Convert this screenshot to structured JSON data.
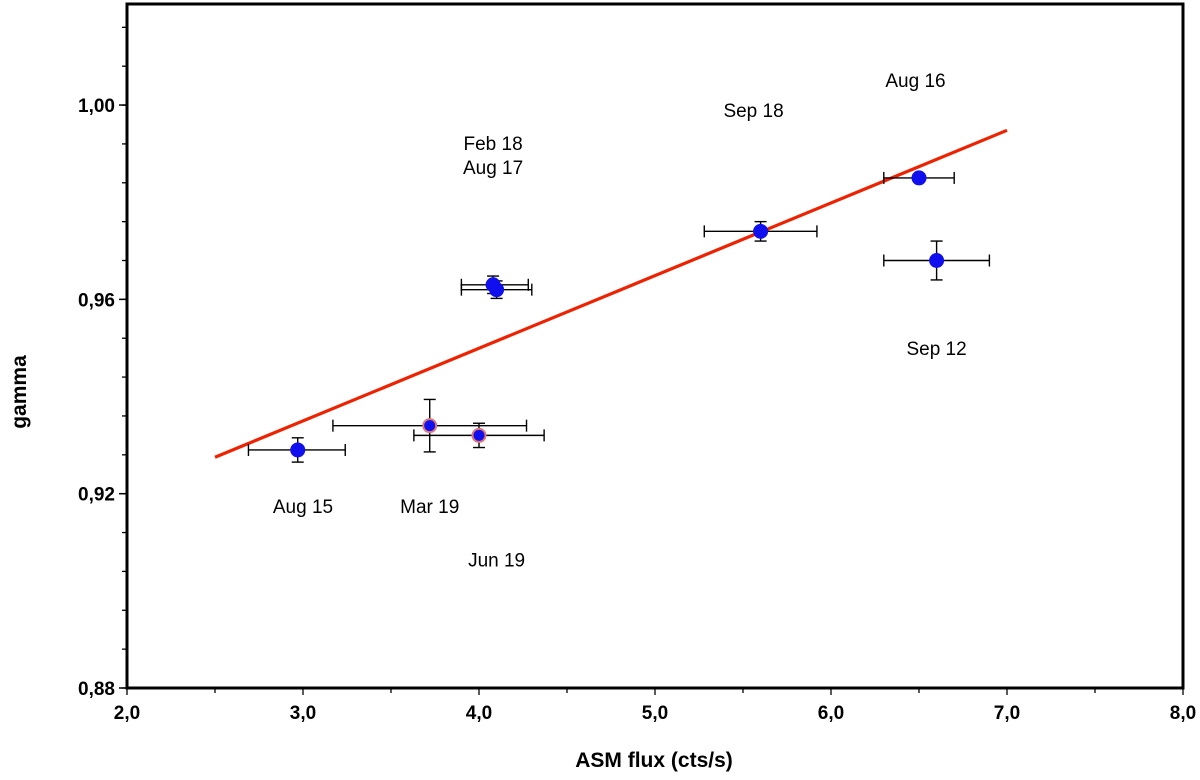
{
  "chart_data": {
    "type": "scatter",
    "title": "",
    "xlabel": "ASM flux  (cts/s)",
    "ylabel": "gamma",
    "xlim": [
      2.0,
      8.0
    ],
    "ylim": [
      0.88,
      1.0208
    ],
    "grid": false,
    "x_ticks": [
      {
        "value": 2.0,
        "label": "2,0"
      },
      {
        "value": 3.0,
        "label": "3,0"
      },
      {
        "value": 4.0,
        "label": "4,0"
      },
      {
        "value": 5.0,
        "label": "5,0"
      },
      {
        "value": 6.0,
        "label": "6,0"
      },
      {
        "value": 7.0,
        "label": "7,0"
      },
      {
        "value": 8.0,
        "label": "8,0"
      }
    ],
    "x_minor_step": 0.5,
    "y_ticks": [
      {
        "value": 0.88,
        "label": "0,88"
      },
      {
        "value": 0.92,
        "label": "0,92"
      },
      {
        "value": 0.96,
        "label": "0,96"
      },
      {
        "value": 1.0,
        "label": "1,00"
      }
    ],
    "y_minor_step": 0.008,
    "series": [
      {
        "name": "blue points",
        "color": "#1010ee",
        "edge_color": "#1010ee",
        "points": [
          {
            "x": 2.97,
            "y": 0.929,
            "xerr": [
              0.28,
              0.27
            ],
            "yerr": [
              0.0025,
              0.0025
            ]
          },
          {
            "x": 4.08,
            "y": 0.963,
            "xerr": [
              0.18,
              0.2
            ],
            "yerr": [
              0.0018,
              0.0018
            ]
          },
          {
            "x": 4.1,
            "y": 0.962,
            "xerr": [
              0.2,
              0.2
            ],
            "yerr": [
              0.0018,
              0.0018
            ]
          },
          {
            "x": 5.6,
            "y": 0.974,
            "xerr": [
              0.32,
              0.32
            ],
            "yerr": [
              0.002,
              0.002
            ]
          },
          {
            "x": 6.5,
            "y": 0.985,
            "xerr": [
              0.2,
              0.2
            ],
            "yerr": [
              0.0008,
              0.0008
            ]
          },
          {
            "x": 6.6,
            "y": 0.968,
            "xerr": [
              0.3,
              0.3
            ],
            "yerr": [
              0.004,
              0.004
            ]
          }
        ]
      },
      {
        "name": "pink-outlined points",
        "color": "#1010ee",
        "edge_color": "#e07878",
        "points": [
          {
            "x": 3.72,
            "y": 0.934,
            "xerr": [
              0.55,
              0.55
            ],
            "yerr": [
              0.0054,
              0.0054
            ]
          },
          {
            "x": 4.0,
            "y": 0.932,
            "xerr": [
              0.37,
              0.37
            ],
            "yerr": [
              0.0025,
              0.0025
            ]
          }
        ]
      }
    ],
    "fit_line": {
      "x": [
        2.5,
        7.0
      ],
      "y": [
        0.9275,
        0.9948
      ],
      "color": "#ee2200"
    },
    "annotations": [
      {
        "text": "Aug 16",
        "x": 6.48,
        "y": 1.0037
      },
      {
        "text": "Sep 18",
        "x": 5.56,
        "y": 0.9975
      },
      {
        "text": "Feb 18",
        "x": 4.08,
        "y": 0.9907
      },
      {
        "text": "Aug 17",
        "x": 4.08,
        "y": 0.9858
      },
      {
        "text": "Sep 12",
        "x": 6.6,
        "y": 0.9485
      },
      {
        "text": "Aug 15",
        "x": 3.0,
        "y": 0.916
      },
      {
        "text": "Mar 19",
        "x": 3.72,
        "y": 0.916
      },
      {
        "text": "Jun 19",
        "x": 4.1,
        "y": 0.905
      }
    ]
  }
}
